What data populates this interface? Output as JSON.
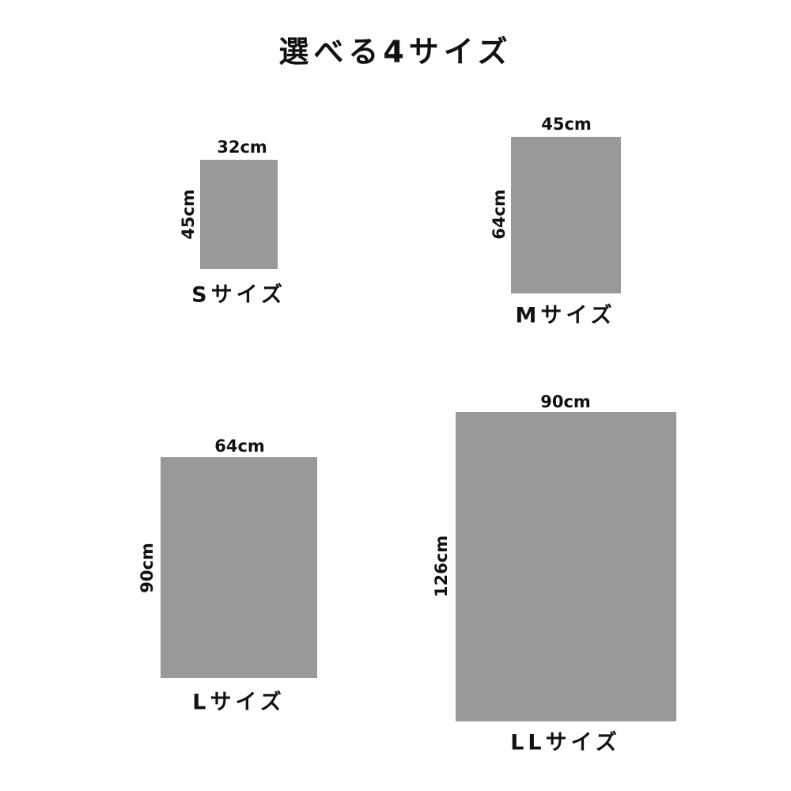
{
  "title": "選べる4サイズ",
  "panel_color": "#999999",
  "sizes": [
    {
      "label": "Sサイズ",
      "width": "32cm",
      "height": "45cm"
    },
    {
      "label": "Mサイズ",
      "width": "45cm",
      "height": "64cm"
    },
    {
      "label": "Lサイズ",
      "width": "64cm",
      "height": "90cm"
    },
    {
      "label": "LLサイズ",
      "width": "90cm",
      "height": "126cm"
    }
  ]
}
